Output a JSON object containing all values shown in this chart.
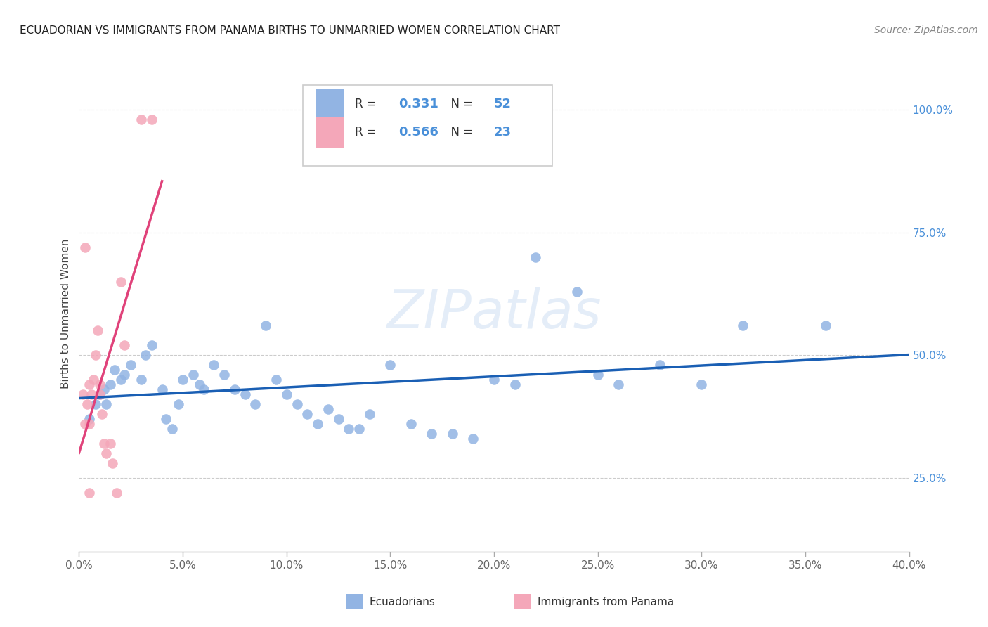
{
  "title": "ECUADORIAN VS IMMIGRANTS FROM PANAMA BIRTHS TO UNMARRIED WOMEN CORRELATION CHART",
  "source": "Source: ZipAtlas.com",
  "ylabel": "Births to Unmarried Women",
  "x_ticks": [
    0.0,
    5.0,
    10.0,
    15.0,
    20.0,
    25.0,
    30.0,
    35.0,
    40.0
  ],
  "y_ticks_right": [
    25.0,
    50.0,
    75.0,
    100.0
  ],
  "xlim": [
    0.0,
    40.0
  ],
  "ylim": [
    10.0,
    107.0
  ],
  "R_blue": "0.331",
  "N_blue": "52",
  "R_pink": "0.566",
  "N_pink": "23",
  "legend_label_blue": "Ecuadorians",
  "legend_label_pink": "Immigrants from Panama",
  "blue_color": "#92b4e3",
  "pink_color": "#f4a7b9",
  "trend_blue_color": "#1a5fb4",
  "trend_pink_color": "#e0427a",
  "watermark": "ZIPatlas",
  "blue_scatter_x": [
    0.5,
    0.8,
    1.0,
    1.2,
    1.3,
    1.5,
    1.7,
    2.0,
    2.2,
    2.5,
    3.0,
    3.2,
    3.5,
    4.0,
    4.2,
    4.5,
    4.8,
    5.0,
    5.5,
    5.8,
    6.0,
    6.5,
    7.0,
    7.5,
    8.0,
    8.5,
    9.0,
    9.5,
    10.0,
    10.5,
    11.0,
    11.5,
    12.0,
    12.5,
    13.0,
    13.5,
    14.0,
    15.0,
    16.0,
    17.0,
    18.0,
    19.0,
    20.0,
    21.0,
    22.0,
    24.0,
    25.0,
    26.0,
    28.0,
    30.0,
    32.0,
    36.0
  ],
  "blue_scatter_y": [
    37.0,
    40.0,
    42.0,
    43.0,
    40.0,
    44.0,
    47.0,
    45.0,
    46.0,
    48.0,
    45.0,
    50.0,
    52.0,
    43.0,
    37.0,
    35.0,
    40.0,
    45.0,
    46.0,
    44.0,
    43.0,
    48.0,
    46.0,
    43.0,
    42.0,
    40.0,
    56.0,
    45.0,
    42.0,
    40.0,
    38.0,
    36.0,
    39.0,
    37.0,
    35.0,
    35.0,
    38.0,
    48.0,
    36.0,
    34.0,
    34.0,
    33.0,
    45.0,
    44.0,
    70.0,
    63.0,
    46.0,
    44.0,
    48.0,
    44.0,
    56.0,
    56.0
  ],
  "pink_scatter_x": [
    0.2,
    0.3,
    0.3,
    0.4,
    0.5,
    0.5,
    0.5,
    0.6,
    0.7,
    0.8,
    0.9,
    1.0,
    1.0,
    1.1,
    1.2,
    1.3,
    1.5,
    1.6,
    1.8,
    2.0,
    2.2,
    3.0,
    3.5
  ],
  "pink_scatter_y": [
    42.0,
    36.0,
    72.0,
    40.0,
    44.0,
    36.0,
    22.0,
    42.0,
    45.0,
    50.0,
    55.0,
    44.0,
    42.0,
    38.0,
    32.0,
    30.0,
    32.0,
    28.0,
    22.0,
    65.0,
    52.0,
    98.0,
    98.0
  ]
}
